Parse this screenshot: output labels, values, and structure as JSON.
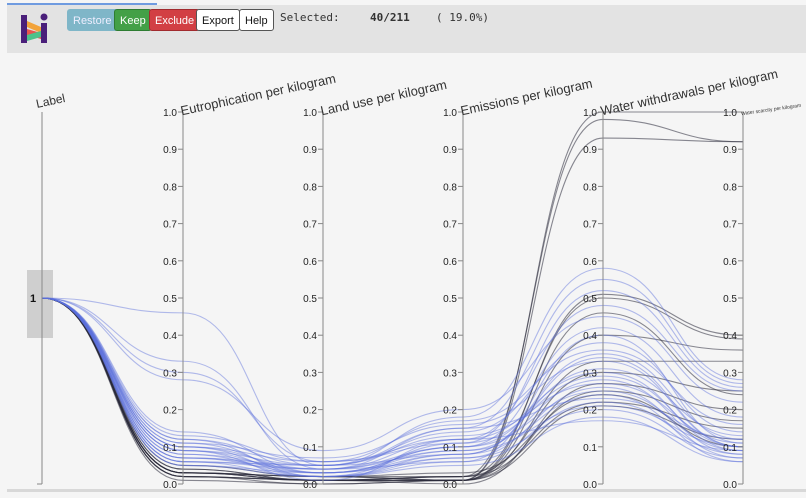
{
  "toolbar": {
    "restore": "Restore",
    "keep": "Keep",
    "exclude": "Exclude",
    "export": "Export",
    "help": "Help",
    "selected_label": "Selected:",
    "selected_count": "40/211",
    "selected_pct": "( 19.0%)"
  },
  "colors": {
    "selected": "#5a6fdc",
    "dark": "#2a2a3a",
    "axis": "#888888"
  },
  "chart_data": {
    "type": "parallel-coordinates",
    "axes": [
      "Label",
      "Eutrophication per kilogram",
      "Land use per kilogram",
      "Emissions per kilogram",
      "Water withdrawals per kilogram",
      "Water scarcity per kilogram"
    ],
    "label_value": "1",
    "ylim": [
      0,
      1
    ],
    "ticks": [
      "0.0",
      "0.1",
      "0.2",
      "0.3",
      "0.4",
      "0.5",
      "0.6",
      "0.7",
      "0.8",
      "0.9",
      "1.0"
    ],
    "series": [
      {
        "kind": "dark",
        "values": [
          0.03,
          0.01,
          0.01,
          1.0,
          1.0
        ]
      },
      {
        "kind": "dark",
        "values": [
          0.02,
          0.01,
          0.02,
          0.98,
          0.92
        ]
      },
      {
        "kind": "dark",
        "values": [
          0.03,
          0.02,
          0.01,
          0.93,
          0.92
        ]
      },
      {
        "kind": "dark",
        "values": [
          0.04,
          0.01,
          0.01,
          0.51,
          0.4
        ]
      },
      {
        "kind": "dark",
        "values": [
          0.02,
          0.01,
          0.02,
          0.5,
          0.39
        ]
      },
      {
        "kind": "dark",
        "values": [
          0.03,
          0.02,
          0.01,
          0.4,
          0.36
        ]
      },
      {
        "kind": "dark",
        "values": [
          0.02,
          0.0,
          0.01,
          0.33,
          0.33
        ]
      },
      {
        "kind": "dark",
        "values": [
          0.03,
          0.01,
          0.02,
          0.3,
          0.25
        ]
      },
      {
        "kind": "dark",
        "values": [
          0.04,
          0.01,
          0.0,
          0.27,
          0.2
        ]
      },
      {
        "kind": "dark",
        "values": [
          0.02,
          0.01,
          0.01,
          0.25,
          0.17
        ]
      },
      {
        "kind": "dark",
        "values": [
          0.03,
          0.02,
          0.02,
          0.22,
          0.15
        ]
      },
      {
        "kind": "dark",
        "values": [
          0.01,
          0.0,
          0.01,
          0.21,
          0.12
        ]
      },
      {
        "kind": "dark",
        "values": [
          0.05,
          0.02,
          0.03,
          0.24,
          0.1
        ]
      },
      {
        "kind": "dark",
        "values": [
          0.03,
          0.01,
          0.01,
          0.46,
          0.24
        ]
      },
      {
        "kind": "blue",
        "values": [
          0.46,
          0.05,
          0.18,
          0.58,
          0.28
        ]
      },
      {
        "kind": "blue",
        "values": [
          0.33,
          0.04,
          0.15,
          0.55,
          0.27
        ]
      },
      {
        "kind": "blue",
        "values": [
          0.3,
          0.06,
          0.12,
          0.48,
          0.25
        ]
      },
      {
        "kind": "blue",
        "values": [
          0.28,
          0.09,
          0.2,
          0.45,
          0.22
        ]
      },
      {
        "kind": "blue",
        "values": [
          0.14,
          0.03,
          0.1,
          0.42,
          0.18
        ]
      },
      {
        "kind": "blue",
        "values": [
          0.12,
          0.05,
          0.14,
          0.38,
          0.14
        ]
      },
      {
        "kind": "blue",
        "values": [
          0.12,
          0.02,
          0.08,
          0.35,
          0.12
        ]
      },
      {
        "kind": "blue",
        "values": [
          0.11,
          0.07,
          0.16,
          0.33,
          0.1
        ]
      },
      {
        "kind": "blue",
        "values": [
          0.1,
          0.04,
          0.12,
          0.3,
          0.09
        ]
      },
      {
        "kind": "blue",
        "values": [
          0.1,
          0.06,
          0.11,
          0.29,
          0.1
        ]
      },
      {
        "kind": "blue",
        "values": [
          0.09,
          0.03,
          0.09,
          0.28,
          0.08
        ]
      },
      {
        "kind": "blue",
        "values": [
          0.09,
          0.05,
          0.13,
          0.27,
          0.11
        ]
      },
      {
        "kind": "blue",
        "values": [
          0.08,
          0.02,
          0.07,
          0.26,
          0.07
        ]
      },
      {
        "kind": "blue",
        "values": [
          0.08,
          0.04,
          0.1,
          0.25,
          0.09
        ]
      },
      {
        "kind": "blue",
        "values": [
          0.07,
          0.03,
          0.08,
          0.24,
          0.06
        ]
      },
      {
        "kind": "blue",
        "values": [
          0.07,
          0.05,
          0.15,
          0.23,
          0.12
        ]
      },
      {
        "kind": "blue",
        "values": [
          0.06,
          0.02,
          0.06,
          0.22,
          0.08
        ]
      },
      {
        "kind": "blue",
        "values": [
          0.06,
          0.04,
          0.09,
          0.21,
          0.1
        ]
      },
      {
        "kind": "blue",
        "values": [
          0.05,
          0.03,
          0.07,
          0.2,
          0.07
        ]
      },
      {
        "kind": "blue",
        "values": [
          0.05,
          0.02,
          0.05,
          0.18,
          0.06
        ]
      },
      {
        "kind": "blue",
        "values": [
          0.09,
          0.01,
          0.12,
          0.17,
          0.09
        ]
      },
      {
        "kind": "blue",
        "values": [
          0.13,
          0.06,
          0.17,
          0.36,
          0.16
        ]
      },
      {
        "kind": "blue",
        "values": [
          0.11,
          0.03,
          0.1,
          0.31,
          0.13
        ]
      },
      {
        "kind": "blue",
        "values": [
          0.1,
          0.02,
          0.11,
          0.52,
          0.26
        ]
      },
      {
        "kind": "blue",
        "values": [
          0.07,
          0.04,
          0.06,
          0.4,
          0.11
        ]
      },
      {
        "kind": "blue",
        "values": [
          0.06,
          0.05,
          0.08,
          0.34,
          0.1
        ]
      }
    ]
  }
}
